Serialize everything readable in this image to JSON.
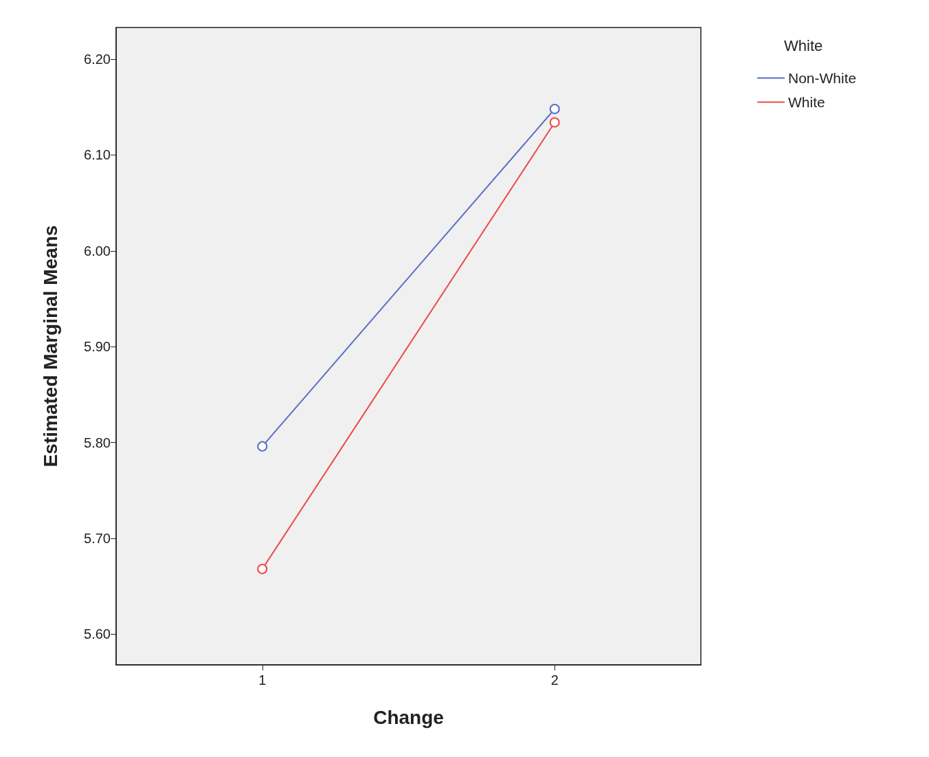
{
  "chart_data": {
    "type": "line",
    "xlabel": "Change",
    "ylabel": "Estimated Marginal Means",
    "legend_title": "White",
    "categories": [
      "1",
      "2"
    ],
    "series": [
      {
        "name": "Non-White",
        "color": "#5a6ec8",
        "values": [
          5.796,
          6.148
        ]
      },
      {
        "name": "White",
        "color": "#f04848",
        "values": [
          5.668,
          6.134
        ]
      }
    ],
    "ylim": [
      5.568,
      6.233
    ],
    "yticks": [
      {
        "value": 5.6,
        "label": "5.60"
      },
      {
        "value": 5.7,
        "label": "5.70"
      },
      {
        "value": 5.8,
        "label": "5.80"
      },
      {
        "value": 5.9,
        "label": "5.90"
      },
      {
        "value": 6.0,
        "label": "6.00"
      },
      {
        "value": 6.1,
        "label": "6.10"
      },
      {
        "value": 6.2,
        "label": "6.20"
      }
    ],
    "grid": false,
    "legend": "top right",
    "marker": "circle",
    "line_style": "solid"
  }
}
